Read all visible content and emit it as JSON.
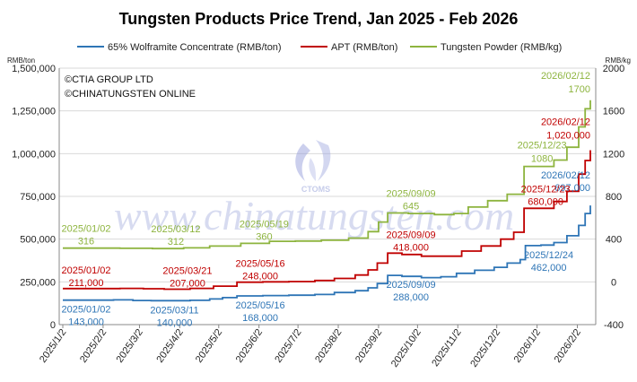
{
  "chart_data": {
    "type": "line",
    "title": "Tungsten Products Price Trend, Jan 2025 - Feb 2026",
    "y_left_unit": "RMB/ton",
    "y_right_unit": "RMB/kg",
    "y_left_ticks": [
      "0",
      "250,000",
      "500,000",
      "750,000",
      "1,000,000",
      "1,250,000",
      "1,500,000"
    ],
    "y_right_ticks": [
      "-400",
      "0",
      "400",
      "800",
      "1200",
      "1600",
      "2000"
    ],
    "y_left_range": [
      0,
      1500000
    ],
    "y_right_range": [
      -400,
      2000
    ],
    "x_ticks": [
      "2025/1/2",
      "2025/2/2",
      "2025/3/2",
      "2025/4/2",
      "2025/5/2",
      "2025/6/2",
      "2025/7/2",
      "2025/8/2",
      "2025/9/2",
      "2025/10/2",
      "2025/11/2",
      "2025/12/2",
      "2026/1/2",
      "2026/2/2"
    ],
    "x_range": [
      "2025-01-02",
      "2026-02-12"
    ],
    "grid": "horizontal",
    "legend_position": "top",
    "copyright": [
      "©CTIA GROUP LTD",
      "©CHINATUNGSTEN ONLINE"
    ],
    "watermark": "www.chinatungsten.com",
    "watermark_logo_text": "CTOMS",
    "series": [
      {
        "name": "65% Wolframite Concentrate (RMB/ton)",
        "color": "#2e75b6",
        "axis": "left",
        "points": [
          [
            "2025-01-02",
            143000
          ],
          [
            "2025-01-20",
            143000
          ],
          [
            "2025-02-10",
            145000
          ],
          [
            "2025-02-25",
            141000
          ],
          [
            "2025-03-11",
            140000
          ],
          [
            "2025-03-25",
            140000
          ],
          [
            "2025-04-10",
            142000
          ],
          [
            "2025-04-25",
            150000
          ],
          [
            "2025-05-05",
            158000
          ],
          [
            "2025-05-16",
            168000
          ],
          [
            "2025-06-05",
            170000
          ],
          [
            "2025-06-25",
            172000
          ],
          [
            "2025-07-15",
            176000
          ],
          [
            "2025-07-30",
            188000
          ],
          [
            "2025-08-15",
            198000
          ],
          [
            "2025-08-25",
            215000
          ],
          [
            "2025-09-01",
            240000
          ],
          [
            "2025-09-09",
            288000
          ],
          [
            "2025-09-20",
            282000
          ],
          [
            "2025-10-05",
            275000
          ],
          [
            "2025-10-20",
            280000
          ],
          [
            "2025-11-01",
            300000
          ],
          [
            "2025-11-15",
            318000
          ],
          [
            "2025-11-30",
            335000
          ],
          [
            "2025-12-10",
            360000
          ],
          [
            "2025-12-20",
            380000
          ],
          [
            "2025-12-24",
            462000
          ],
          [
            "2026-01-05",
            465000
          ],
          [
            "2026-01-15",
            480000
          ],
          [
            "2026-01-25",
            520000
          ],
          [
            "2026-02-03",
            580000
          ],
          [
            "2026-02-08",
            650000
          ],
          [
            "2026-02-12",
            697000
          ]
        ]
      },
      {
        "name": "APT (RMB/ton)",
        "color": "#c00000",
        "axis": "left",
        "points": [
          [
            "2025-01-02",
            211000
          ],
          [
            "2025-01-25",
            211000
          ],
          [
            "2025-02-15",
            212000
          ],
          [
            "2025-03-05",
            210000
          ],
          [
            "2025-03-21",
            207000
          ],
          [
            "2025-04-10",
            212000
          ],
          [
            "2025-04-28",
            225000
          ],
          [
            "2025-05-16",
            248000
          ],
          [
            "2025-06-05",
            250000
          ],
          [
            "2025-06-25",
            252000
          ],
          [
            "2025-07-15",
            258000
          ],
          [
            "2025-07-30",
            270000
          ],
          [
            "2025-08-15",
            290000
          ],
          [
            "2025-08-25",
            320000
          ],
          [
            "2025-09-01",
            360000
          ],
          [
            "2025-09-09",
            418000
          ],
          [
            "2025-09-20",
            410000
          ],
          [
            "2025-10-05",
            400000
          ],
          [
            "2025-10-25",
            400000
          ],
          [
            "2025-11-05",
            430000
          ],
          [
            "2025-11-20",
            460000
          ],
          [
            "2025-12-05",
            500000
          ],
          [
            "2025-12-15",
            540000
          ],
          [
            "2025-12-23",
            680000
          ],
          [
            "2026-01-05",
            680000
          ],
          [
            "2026-01-15",
            720000
          ],
          [
            "2026-01-25",
            780000
          ],
          [
            "2026-02-03",
            880000
          ],
          [
            "2026-02-08",
            960000
          ],
          [
            "2026-02-12",
            1020000
          ]
        ]
      },
      {
        "name": "Tungsten Powder (RMB/kg)",
        "color": "#8db43e",
        "axis": "right",
        "points": [
          [
            "2025-01-02",
            316
          ],
          [
            "2025-01-25",
            316
          ],
          [
            "2025-02-15",
            314
          ],
          [
            "2025-03-12",
            312
          ],
          [
            "2025-04-05",
            318
          ],
          [
            "2025-04-25",
            335
          ],
          [
            "2025-05-19",
            360
          ],
          [
            "2025-06-10",
            380
          ],
          [
            "2025-06-30",
            382
          ],
          [
            "2025-07-20",
            390
          ],
          [
            "2025-08-10",
            410
          ],
          [
            "2025-08-25",
            470
          ],
          [
            "2025-09-02",
            560
          ],
          [
            "2025-09-09",
            645
          ],
          [
            "2025-09-25",
            640
          ],
          [
            "2025-10-15",
            630
          ],
          [
            "2025-10-30",
            640
          ],
          [
            "2025-11-10",
            700
          ],
          [
            "2025-11-25",
            760
          ],
          [
            "2025-12-10",
            820
          ],
          [
            "2025-12-23",
            1080
          ],
          [
            "2026-01-05",
            1080
          ],
          [
            "2026-01-15",
            1140
          ],
          [
            "2026-01-25",
            1260
          ],
          [
            "2026-02-03",
            1450
          ],
          [
            "2026-02-08",
            1620
          ],
          [
            "2026-02-12",
            1700
          ]
        ]
      }
    ],
    "annotations": [
      {
        "series": 0,
        "date": "2025/01/02",
        "value": "143,000",
        "at": "2025-01-02"
      },
      {
        "series": 0,
        "date": "2025/03/11",
        "value": "140,000",
        "at": "2025-03-11"
      },
      {
        "series": 0,
        "date": "2025/05/16",
        "value": "168,000",
        "at": "2025-05-16"
      },
      {
        "series": 0,
        "date": "2025/09/09",
        "value": "288,000",
        "at": "2025-09-09"
      },
      {
        "series": 0,
        "date": "2025/12/24",
        "value": "462,000",
        "at": "2025-12-24"
      },
      {
        "series": 0,
        "date": "2026/02/12",
        "value": "697,000",
        "at": "2026-02-12"
      },
      {
        "series": 1,
        "date": "2025/01/02",
        "value": "211,000",
        "at": "2025-01-02"
      },
      {
        "series": 1,
        "date": "2025/03/21",
        "value": "207,000",
        "at": "2025-03-21"
      },
      {
        "series": 1,
        "date": "2025/05/16",
        "value": "248,000",
        "at": "2025-05-16"
      },
      {
        "series": 1,
        "date": "2025/09/09",
        "value": "418,000",
        "at": "2025-09-09"
      },
      {
        "series": 1,
        "date": "2025/12/23",
        "value": "680,000",
        "at": "2025-12-23"
      },
      {
        "series": 1,
        "date": "2026/02/12",
        "value": "1,020,000",
        "at": "2026-02-12"
      },
      {
        "series": 2,
        "date": "2025/01/02",
        "value": "316",
        "at": "2025-01-02"
      },
      {
        "series": 2,
        "date": "2025/03/12",
        "value": "312",
        "at": "2025-03-12"
      },
      {
        "series": 2,
        "date": "2025/05/19",
        "value": "360",
        "at": "2025-05-19"
      },
      {
        "series": 2,
        "date": "2025/09/09",
        "value": "645",
        "at": "2025-09-09"
      },
      {
        "series": 2,
        "date": "2025/12/23",
        "value": "1080",
        "at": "2025-12-23"
      },
      {
        "series": 2,
        "date": "2026/02/12",
        "value": "1700",
        "at": "2026-02-12"
      }
    ]
  }
}
